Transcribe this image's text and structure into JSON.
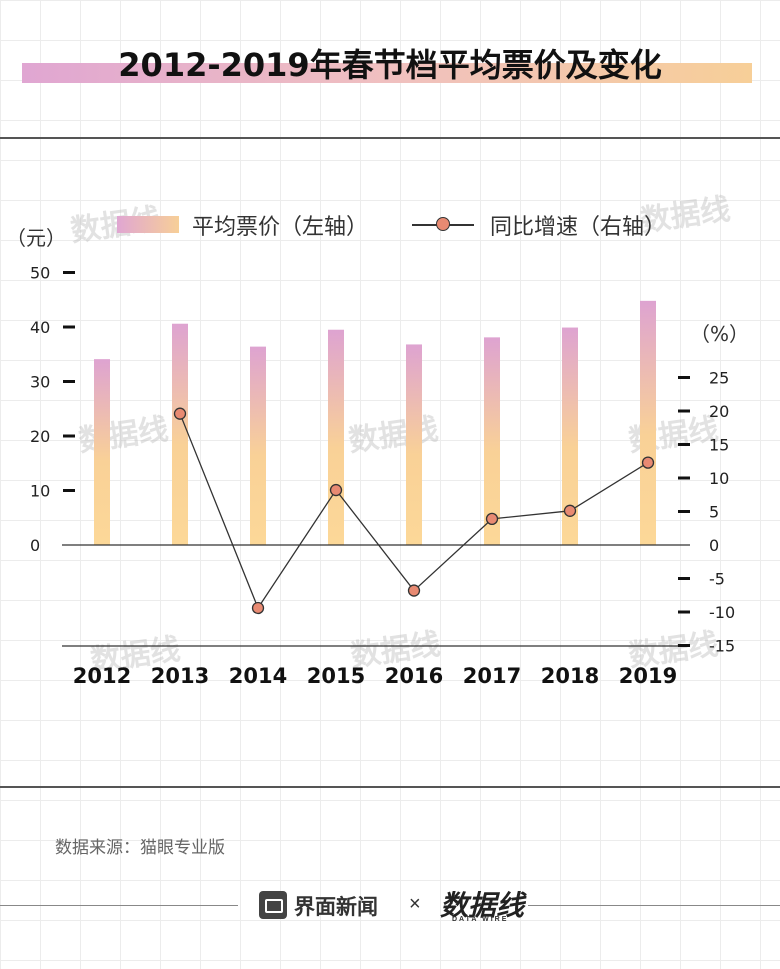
{
  "title": "2012-2019年春节档平均票价及变化",
  "watermark": "数据线",
  "legend": {
    "bar_label": "平均票价（左轴）",
    "line_label": "同比增速（右轴）"
  },
  "left_unit": "（元）",
  "right_unit": "（%）",
  "source": "数据来源：猫眼专业版",
  "brand": "界面新闻",
  "times_sign": "×",
  "partner": "数据线",
  "partner_sub": "DATA WIRE",
  "colors": {
    "bar_top": "#dea3d1",
    "bar_bottom": "#f9d197",
    "line": "#333333",
    "marker": "#e88a72",
    "text": "#222222"
  },
  "chart_data": {
    "type": "bar",
    "categories": [
      "2012",
      "2013",
      "2014",
      "2015",
      "2016",
      "2017",
      "2018",
      "2019"
    ],
    "series": [
      {
        "name": "平均票价（左轴）",
        "type": "bar",
        "axis": "left",
        "values": [
          34.1,
          40.6,
          36.4,
          39.5,
          36.8,
          38.1,
          39.9,
          44.8
        ]
      },
      {
        "name": "同比增速（右轴）",
        "type": "line",
        "axis": "right",
        "values": [
          null,
          19.6,
          -9.4,
          8.2,
          -6.8,
          3.9,
          5.1,
          12.3
        ]
      }
    ],
    "left_axis": {
      "ylim": [
        0,
        50
      ],
      "ticks": [
        0,
        10,
        20,
        30,
        40,
        50
      ]
    },
    "right_axis": {
      "ylim": [
        -15,
        25
      ],
      "ticks": [
        25,
        20,
        15,
        10,
        5,
        0,
        -5,
        -10,
        -15
      ]
    },
    "legend_position": "top"
  }
}
